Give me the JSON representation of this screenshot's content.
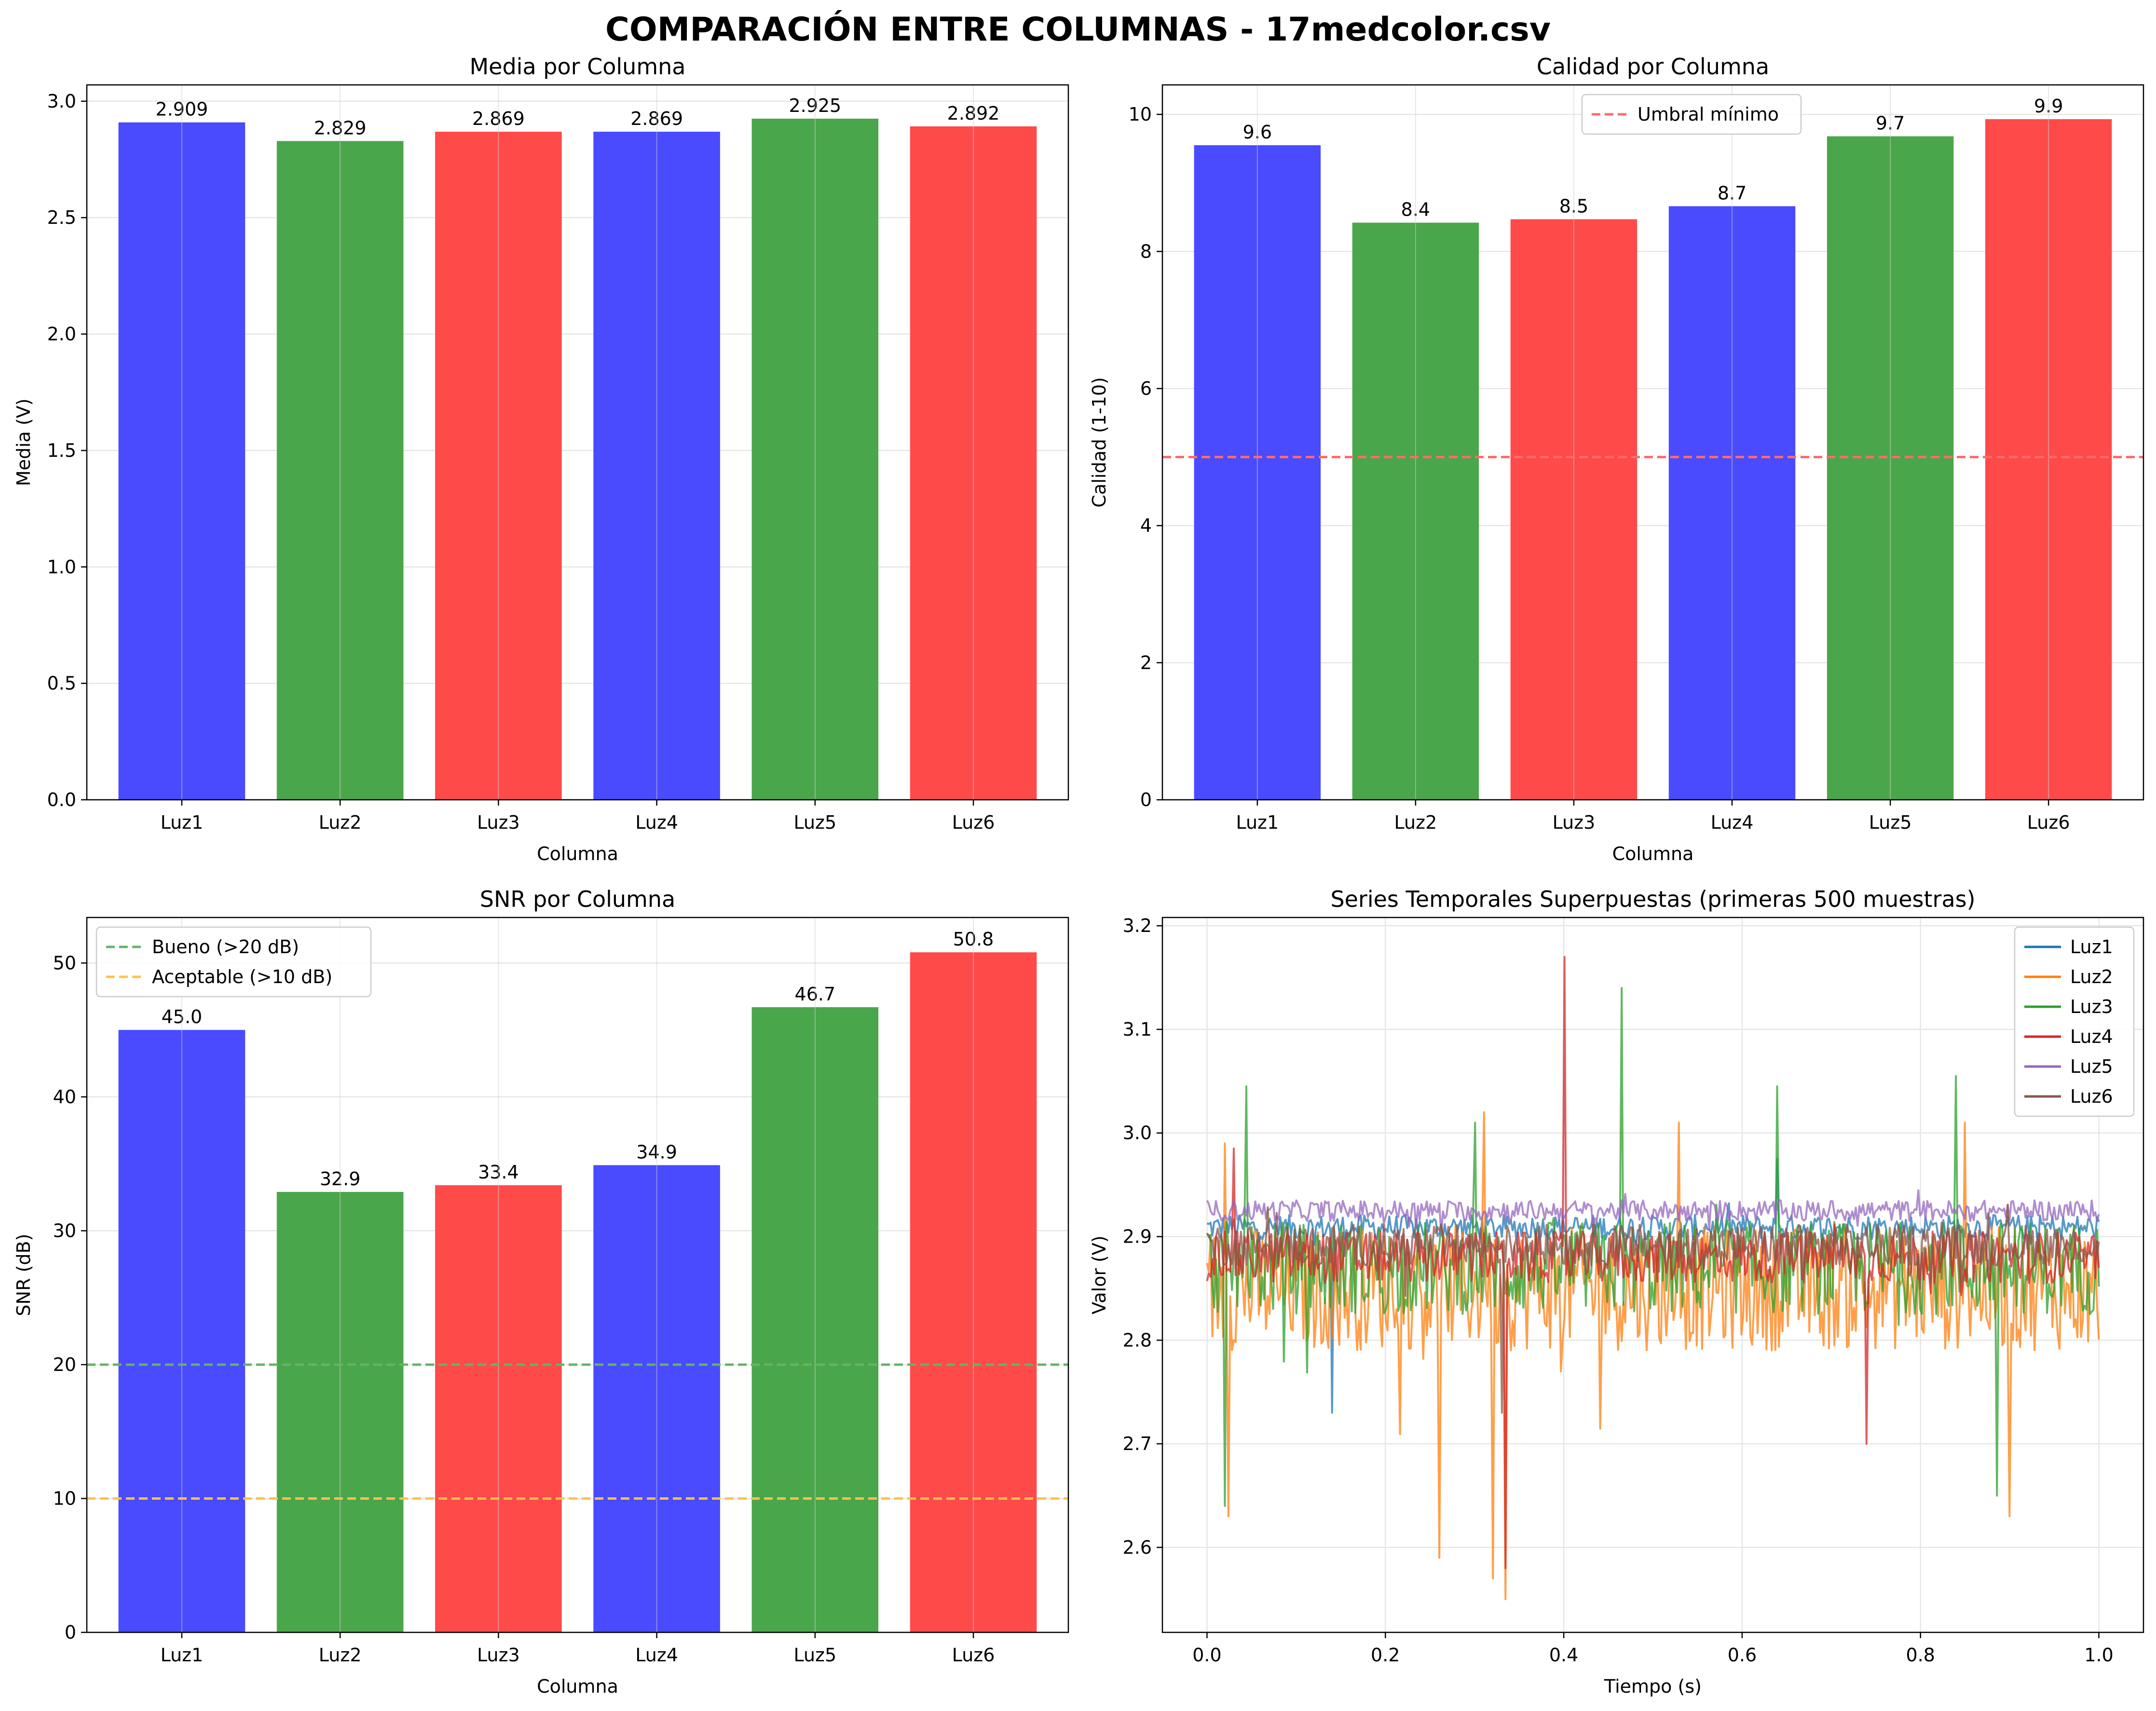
{
  "figure": {
    "title": "COMPARACIÓN ENTRE COLUMNAS - 17medcolor.csv"
  },
  "colors": {
    "blue": "#4a4aff",
    "green": "#4aa64a",
    "red": "#ff4a4a",
    "grid": "#e6e6e6",
    "threshold_red": "#ff6b6b",
    "threshold_green": "#66b266",
    "threshold_orange": "#ffc04d"
  },
  "chart_data": [
    {
      "type": "bar",
      "title": "Media por Columna",
      "xlabel": "Columna",
      "ylabel": "Media (V)",
      "categories": [
        "Luz1",
        "Luz2",
        "Luz3",
        "Luz4",
        "Luz5",
        "Luz6"
      ],
      "values": [
        2.909,
        2.829,
        2.869,
        2.869,
        2.925,
        2.892
      ],
      "labels": [
        "2.909",
        "2.829",
        "2.869",
        "2.869",
        "2.925",
        "2.892"
      ],
      "bar_colors": [
        "blue",
        "green",
        "red",
        "blue",
        "green",
        "red"
      ],
      "ylim": [
        0,
        3.07
      ],
      "yticks": [
        0.0,
        0.5,
        1.0,
        1.5,
        2.0,
        2.5,
        3.0
      ],
      "ytick_labels": [
        "0.0",
        "0.5",
        "1.0",
        "1.5",
        "2.0",
        "2.5",
        "3.0"
      ],
      "grid": true,
      "hlines": []
    },
    {
      "type": "bar",
      "title": "Calidad por Columna",
      "xlabel": "Columna",
      "ylabel": "Calidad (1-10)",
      "categories": [
        "Luz1",
        "Luz2",
        "Luz3",
        "Luz4",
        "Luz5",
        "Luz6"
      ],
      "values": [
        9.55,
        8.42,
        8.47,
        8.66,
        9.68,
        9.93
      ],
      "labels": [
        "9.6",
        "8.4",
        "8.5",
        "8.7",
        "9.7",
        "9.9"
      ],
      "bar_colors": [
        "blue",
        "green",
        "red",
        "blue",
        "green",
        "red"
      ],
      "ylim": [
        0,
        10.43
      ],
      "yticks": [
        0,
        2,
        4,
        6,
        8,
        10
      ],
      "ytick_labels": [
        "0",
        "2",
        "4",
        "6",
        "8",
        "10"
      ],
      "grid": true,
      "hlines": [
        {
          "y": 5,
          "color": "threshold_red",
          "label": "Umbral mínimo"
        }
      ],
      "legend": {
        "placement": "upper-center",
        "entries": [
          "Umbral mínimo"
        ]
      }
    },
    {
      "type": "bar",
      "title": "SNR por Columna",
      "xlabel": "Columna",
      "ylabel": "SNR (dB)",
      "categories": [
        "Luz1",
        "Luz2",
        "Luz3",
        "Luz4",
        "Luz5",
        "Luz6"
      ],
      "values": [
        45.0,
        32.9,
        33.4,
        34.9,
        46.7,
        50.8
      ],
      "labels": [
        "45.0",
        "32.9",
        "33.4",
        "34.9",
        "46.7",
        "50.8"
      ],
      "bar_colors": [
        "blue",
        "green",
        "red",
        "blue",
        "green",
        "red"
      ],
      "ylim": [
        0,
        53.4
      ],
      "yticks": [
        0,
        10,
        20,
        30,
        40,
        50
      ],
      "ytick_labels": [
        "0",
        "10",
        "20",
        "30",
        "40",
        "50"
      ],
      "grid": true,
      "hlines": [
        {
          "y": 20,
          "color": "threshold_green",
          "label": "Bueno (>20 dB)"
        },
        {
          "y": 10,
          "color": "threshold_orange",
          "label": "Aceptable (>10 dB)"
        }
      ],
      "legend": {
        "placement": "upper-left",
        "entries": [
          "Bueno (>20 dB)",
          "Aceptable (>10 dB)"
        ]
      }
    },
    {
      "type": "line",
      "title": "Series Temporales Superpuestas (primeras 500 muestras)",
      "xlabel": "Tiempo (s)",
      "ylabel": "Valor (V)",
      "xlim": [
        -0.05,
        1.05
      ],
      "ylim": [
        2.518,
        3.208
      ],
      "xticks": [
        0.0,
        0.2,
        0.4,
        0.6,
        0.8,
        1.0
      ],
      "xtick_labels": [
        "0.0",
        "0.2",
        "0.4",
        "0.6",
        "0.8",
        "1.0"
      ],
      "yticks": [
        2.6,
        2.7,
        2.8,
        2.9,
        3.0,
        3.1,
        3.2
      ],
      "ytick_labels": [
        "2.6",
        "2.7",
        "2.8",
        "2.9",
        "3.0",
        "3.1",
        "3.2"
      ],
      "grid": true,
      "legend": {
        "placement": "upper-right",
        "entries": [
          "Luz1",
          "Luz2",
          "Luz3",
          "Luz4",
          "Luz5",
          "Luz6"
        ]
      },
      "series_style": [
        {
          "name": "Luz1",
          "color": "#1f77b4",
          "mean": 2.909,
          "noise": 0.012,
          "spikes": [
            [
              0.64,
              2.975
            ],
            [
              0.14,
              2.73
            ]
          ]
        },
        {
          "name": "Luz2",
          "color": "#ff7f0e",
          "mean": 2.85,
          "noise": 0.06,
          "spikes": [
            [
              0.32,
              2.57
            ],
            [
              0.335,
              2.55
            ],
            [
              0.26,
              2.59
            ],
            [
              0.025,
              2.63
            ],
            [
              0.02,
              2.99
            ],
            [
              0.31,
              3.02
            ],
            [
              0.53,
              3.01
            ],
            [
              0.85,
              3.01
            ],
            [
              0.9,
              2.63
            ]
          ]
        },
        {
          "name": "Luz3",
          "color": "#2ca02c",
          "mean": 2.87,
          "noise": 0.045,
          "spikes": [
            [
              0.465,
              3.14
            ],
            [
              0.045,
              3.045
            ],
            [
              0.64,
              3.045
            ],
            [
              0.84,
              3.055
            ],
            [
              0.02,
              2.64
            ],
            [
              0.885,
              2.65
            ],
            [
              0.3,
              3.01
            ]
          ]
        },
        {
          "name": "Luz4",
          "color": "#d62728",
          "mean": 2.88,
          "noise": 0.025,
          "spikes": [
            [
              0.4,
              3.17
            ],
            [
              0.335,
              2.58
            ],
            [
              0.03,
              2.985
            ],
            [
              0.74,
              2.7
            ]
          ]
        },
        {
          "name": "Luz5",
          "color": "#9467bd",
          "mean": 2.925,
          "noise": 0.01,
          "spikes": []
        },
        {
          "name": "Luz6",
          "color": "#8c564b",
          "mean": 2.892,
          "noise": 0.02,
          "spikes": [
            [
              0.33,
              2.73
            ]
          ]
        }
      ]
    }
  ]
}
